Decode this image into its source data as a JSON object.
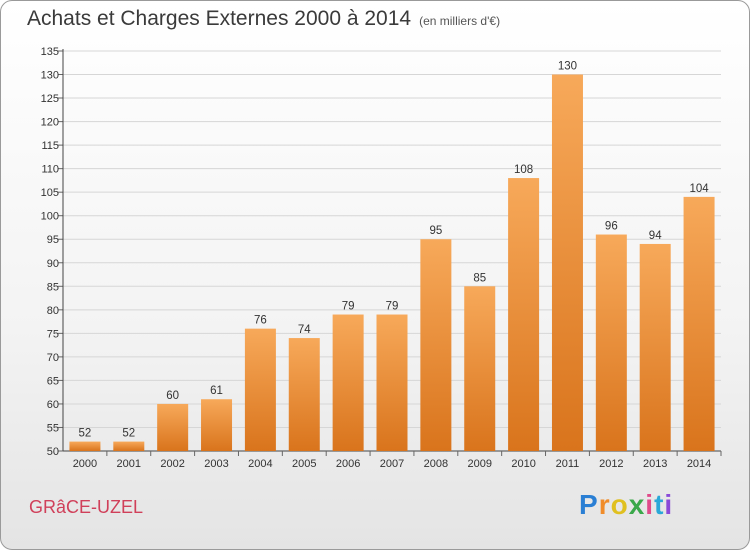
{
  "title": "Achats et Charges Externes 2000 à 2014",
  "subtitle": "(en milliers d'€)",
  "commune": "GRâCE-UZEL",
  "logo": {
    "letters": [
      "P",
      "r",
      "o",
      "x",
      "i",
      "t",
      "i"
    ],
    "colors": [
      "#2a7fd4",
      "#f08c2a",
      "#e0c020",
      "#3aa84a",
      "#e04a8a",
      "#2aa8d8",
      "#8a4ad8"
    ]
  },
  "colors": {
    "bar_top": "#f7a95a",
    "bar_bottom": "#d9741c",
    "commune": "#d0405a"
  },
  "chart_data": {
    "type": "bar",
    "categories": [
      "2000",
      "2001",
      "2002",
      "2003",
      "2004",
      "2005",
      "2006",
      "2007",
      "2008",
      "2009",
      "2010",
      "2011",
      "2012",
      "2013",
      "2014"
    ],
    "values": [
      52,
      52,
      60,
      61,
      76,
      74,
      79,
      79,
      95,
      85,
      108,
      130,
      96,
      94,
      104
    ],
    "ylim": [
      50,
      135
    ],
    "yticks": [
      50,
      55,
      60,
      65,
      70,
      75,
      80,
      85,
      90,
      95,
      100,
      105,
      110,
      115,
      120,
      125,
      130,
      135
    ],
    "grid": true
  }
}
